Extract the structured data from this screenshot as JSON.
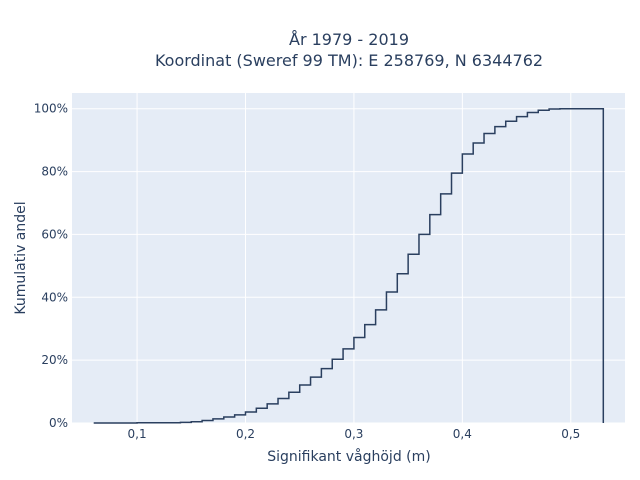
{
  "chart_data": {
    "type": "line",
    "line_shape": "step",
    "title_line1": "År 1979 - 2019",
    "title_line2": "Koordinat (Sweref 99 TM): E 258769, N 6344762",
    "xlabel": "Signifikant våghöjd (m)",
    "ylabel": "Kumulativ andel",
    "xlim": [
      0.04,
      0.55
    ],
    "ylim": [
      0,
      1.05
    ],
    "x_ticks": [
      0.1,
      0.2,
      0.3,
      0.4,
      0.5
    ],
    "x_tick_labels": [
      "0,1",
      "0,2",
      "0,3",
      "0,4",
      "0,5"
    ],
    "y_ticks": [
      0,
      0.2,
      0.4,
      0.6,
      0.8,
      1.0
    ],
    "y_tick_labels": [
      "0%",
      "20%",
      "40%",
      "60%",
      "80%",
      "100%"
    ],
    "grid": true,
    "legend": "none",
    "colors": {
      "plot_bg": "#e5ecf6",
      "grid": "#ffffff",
      "line": "#2a3f5f",
      "text": "#2a3f5f"
    },
    "x": [
      0.06,
      0.1,
      0.14,
      0.15,
      0.16,
      0.17,
      0.18,
      0.19,
      0.2,
      0.21,
      0.22,
      0.23,
      0.24,
      0.25,
      0.26,
      0.27,
      0.28,
      0.29,
      0.3,
      0.31,
      0.32,
      0.33,
      0.34,
      0.35,
      0.36,
      0.37,
      0.38,
      0.39,
      0.4,
      0.41,
      0.42,
      0.43,
      0.44,
      0.45,
      0.46,
      0.47,
      0.48,
      0.49,
      0.5,
      0.53,
      0.53
    ],
    "y": [
      0.0,
      0.001,
      0.002,
      0.004,
      0.008,
      0.013,
      0.019,
      0.026,
      0.035,
      0.047,
      0.061,
      0.078,
      0.098,
      0.121,
      0.146,
      0.173,
      0.203,
      0.236,
      0.272,
      0.313,
      0.36,
      0.417,
      0.475,
      0.537,
      0.6,
      0.663,
      0.729,
      0.795,
      0.856,
      0.891,
      0.921,
      0.943,
      0.96,
      0.975,
      0.988,
      0.995,
      0.999,
      1.0,
      1.0,
      1.0,
      0.0
    ]
  }
}
